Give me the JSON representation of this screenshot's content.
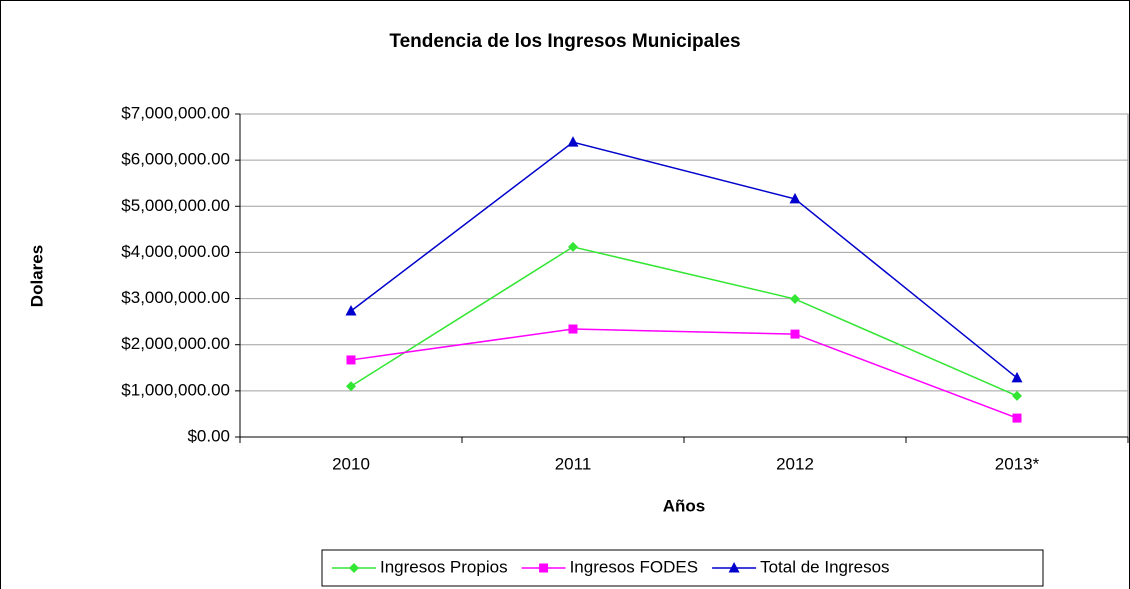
{
  "chart_data": {
    "type": "line",
    "title": "Tendencia de los Ingresos Municipales",
    "x_label": "Años",
    "y_label": "Dolares",
    "categories": [
      "2010",
      "2011",
      "2012",
      "2013*"
    ],
    "series": [
      {
        "name": "Ingresos Propios",
        "color": "#33e633",
        "marker": "diamond",
        "values": [
          1100000,
          4120000,
          2990000,
          890000
        ]
      },
      {
        "name": "Ingresos FODES",
        "color": "#ff00ff",
        "marker": "square",
        "values": [
          1670000,
          2340000,
          2230000,
          410000
        ]
      },
      {
        "name": "Total de Ingresos",
        "color": "#0000cc",
        "marker": "triangle",
        "values": [
          2730000,
          6390000,
          5160000,
          1280000
        ]
      }
    ],
    "ylim": [
      0,
      7000000
    ],
    "yticks": [
      {
        "value": 0,
        "label": "$0.00"
      },
      {
        "value": 1000000,
        "label": "$1,000,000.00"
      },
      {
        "value": 2000000,
        "label": "$2,000,000.00"
      },
      {
        "value": 3000000,
        "label": "$3,000,000.00"
      },
      {
        "value": 4000000,
        "label": "$4,000,000.00"
      },
      {
        "value": 5000000,
        "label": "$5,000,000.00"
      },
      {
        "value": 6000000,
        "label": "$6,000,000.00"
      },
      {
        "value": 7000000,
        "label": "$7,000,000.00"
      }
    ],
    "grid": true,
    "legend": "bottom"
  }
}
